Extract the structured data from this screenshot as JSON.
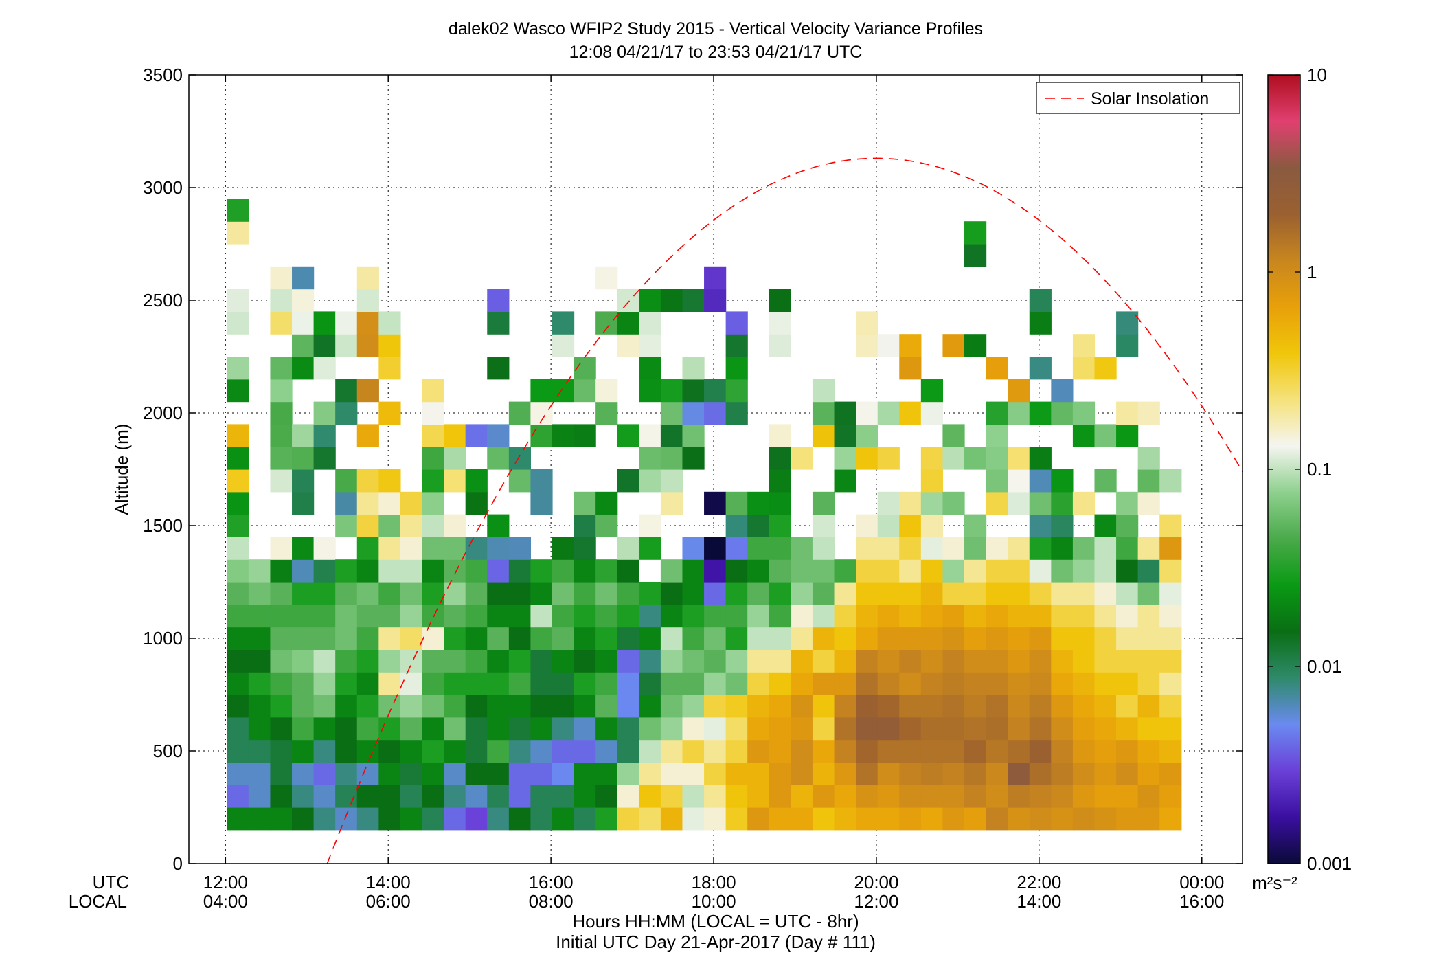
{
  "chart_data": {
    "type": "heatmap",
    "title": "dalek02 Wasco WFIP2 Study 2015 - Vertical Velocity Variance Profiles",
    "subtitle": "12:08 04/21/17 to 23:53 04/21/17  UTC",
    "ylabel": "Altitude (m)",
    "xlabel": "Hours HH:MM  (LOCAL = UTC - 8hr)",
    "xlabel2": "Initial UTC Day 21-Apr-2017 (Day # 111)",
    "x_row_labels": {
      "utc": "UTC",
      "local": "LOCAL"
    },
    "x_ticks_utc": [
      "12:00",
      "14:00",
      "16:00",
      "18:00",
      "20:00",
      "22:00",
      "00:00"
    ],
    "x_ticks_local": [
      "04:00",
      "06:00",
      "08:00",
      "10:00",
      "12:00",
      "14:00",
      "16:00"
    ],
    "x_tick_hours": [
      12,
      14,
      16,
      18,
      20,
      22,
      24
    ],
    "xlim_hours": [
      11.55,
      24.5
    ],
    "y_ticks": [
      "0",
      "500",
      "1000",
      "1500",
      "2000",
      "2500",
      "3000",
      "3500"
    ],
    "ylim": [
      0,
      3500
    ],
    "grid": true,
    "colorbar": {
      "scale": "log",
      "range": [
        0.001,
        10
      ],
      "tick_labels": [
        "0.001",
        "0.01",
        "0.1",
        "1",
        "10"
      ],
      "units": "m²s⁻²",
      "stops": [
        "#0a0a38",
        "#3a0fa0",
        "#6a40d8",
        "#6a8af0",
        "#2e8a6a",
        "#0a6e14",
        "#0a9a14",
        "#4aaa4a",
        "#8ed08e",
        "#f5f5f0",
        "#f5e27a",
        "#f0c60a",
        "#e8a00a",
        "#c8861e",
        "#9a6030",
        "#8a5a40",
        "#e04070",
        "#b00e20"
      ]
    },
    "legend": {
      "label": "Solar Insolation",
      "position": "top-right",
      "color": "#ff0000"
    },
    "time_columns": 44,
    "column_width_hours": 0.2666,
    "first_column_hour": 12.15,
    "gate_height_m": 100,
    "first_gate_m": 200,
    "solar_insolation_curve": {
      "start_hour": 13.25,
      "end_hour": 24.5,
      "peak_hour": 20.0,
      "peak_altitude": 3130
    },
    "heatmap_note": "values are vertical velocity variance in m2s-2 (log scale); cells estimated from colors",
    "profiles": [
      {
        "top": 2900,
        "low": [
          0.02,
          0.004,
          0.006,
          0.01,
          0.01,
          0.015,
          0.02,
          0.015,
          0.02,
          0.04,
          0.05,
          0.07,
          0.1
        ]
      },
      {
        "top": 1300,
        "low": [
          0.02,
          0.006,
          0.006,
          0.01,
          0.02,
          0.02,
          0.03,
          0.015,
          0.02,
          0.04,
          0.06,
          0.08
        ]
      },
      {
        "top": 2650,
        "low": [
          0.02,
          0.015,
          0.012,
          0.012,
          0.015,
          0.03,
          0.04,
          0.06,
          0.05,
          0.04,
          0.05
        ]
      },
      {
        "top": 2600,
        "low": [
          0.015,
          0.008,
          0.006,
          0.02,
          0.04,
          0.05,
          0.05,
          0.07,
          0.05,
          0.04,
          0.03
        ]
      },
      {
        "top": 2450,
        "low": [
          0.008,
          0.006,
          0.004,
          0.008,
          0.02,
          0.06,
          0.08,
          0.1,
          0.05,
          0.04,
          0.03
        ]
      },
      {
        "top": 2400,
        "low": [
          0.006,
          0.01,
          0.008,
          0.015,
          0.015,
          0.02,
          0.03,
          0.04,
          0.06,
          0.06,
          0.05,
          0.03
        ]
      },
      {
        "top": 2600,
        "low": [
          0.008,
          0.015,
          0.006,
          0.02,
          0.04,
          0.03,
          0.02,
          0.03,
          0.04,
          0.05,
          0.06,
          0.02,
          0.03,
          0.3,
          0.2,
          0.3
        ]
      },
      {
        "top": 2350,
        "low": [
          0.015,
          0.015,
          0.02,
          0.015,
          0.03,
          0.06,
          0.2,
          0.08,
          0.2,
          0.05,
          0.04,
          0.1,
          0.2,
          0.06,
          0.15
        ]
      },
      {
        "top": 1800,
        "low": [
          0.02,
          0.01,
          0.012,
          0.02,
          0.05,
          0.08,
          0.12,
          0.1,
          0.25,
          0.08,
          0.06,
          0.1,
          0.15,
          0.2,
          0.3
        ]
      },
      {
        "top": 2200,
        "low": [
          0.01,
          0.015,
          0.02,
          0.03,
          0.02,
          0.06,
          0.04,
          0.05,
          0.15,
          0.04,
          0.03,
          0.02,
          0.06,
          0.1
        ]
      },
      {
        "top": 2200,
        "low": [
          0.004,
          0.008,
          0.006,
          0.02,
          0.06,
          0.04,
          0.03,
          0.05,
          0.03,
          0.05,
          0.08,
          0.05,
          0.06,
          0.15
        ]
      },
      {
        "top": 2300,
        "low": [
          0.003,
          0.006,
          0.015,
          0.012,
          0.012,
          0.015,
          0.03,
          0.04,
          0.02,
          0.04,
          0.05,
          0.04,
          0.008
        ]
      },
      {
        "top": 2550,
        "low": [
          0.008,
          0.01,
          0.015,
          0.04,
          0.02,
          0.02,
          0.03,
          0.02,
          0.05,
          0.02,
          0.015
        ]
      },
      {
        "top": 2100,
        "low": [
          0.015,
          0.004,
          0.004,
          0.008,
          0.012,
          0.02,
          0.04,
          0.03,
          0.015,
          0.02,
          0.015,
          0.012
        ]
      },
      {
        "top": 2100,
        "low": [
          0.01,
          0.01,
          0.004,
          0.006,
          0.02,
          0.015,
          0.012,
          0.012,
          0.04,
          0.1,
          0.02,
          0.03
        ]
      },
      {
        "top": 2400,
        "low": [
          0.02,
          0.01,
          0.005,
          0.004,
          0.008,
          0.015,
          0.012,
          0.02,
          0.05,
          0.04,
          0.06,
          0.04
        ]
      },
      {
        "top": 2300,
        "low": [
          0.01,
          0.02,
          0.02,
          0.004,
          0.006,
          0.02,
          0.03,
          0.015,
          0.02,
          0.03,
          0.04,
          0.02
        ]
      },
      {
        "top": 2600,
        "low": [
          0.03,
          0.015,
          0.02,
          0.006,
          0.02,
          0.05,
          0.04,
          0.02,
          0.03,
          0.04,
          0.06
        ]
      },
      {
        "top": 2500,
        "low": [
          0.3,
          0.15,
          0.08,
          0.01,
          0.01,
          0.005,
          0.005,
          0.004,
          0.012,
          0.03,
          0.04
        ]
      },
      {
        "top": 2500,
        "low": [
          0.25,
          0.4,
          0.2,
          0.1,
          0.06,
          0.02,
          0.012,
          0.008,
          0.02,
          0.008,
          0.03
        ]
      },
      {
        "top": 2500,
        "low": [
          0.5,
          0.3,
          0.15,
          0.2,
          0.08,
          0.06,
          0.05,
          0.08,
          0.1,
          0.02,
          0.015,
          0.06
        ]
      },
      {
        "top": 2500,
        "low": [
          0.12,
          0.1,
          0.15,
          0.3,
          0.15,
          0.08,
          0.05,
          0.06,
          0.04,
          0.03,
          0.02,
          0.02
        ]
      },
      {
        "top": 2550,
        "low": [
          0.15,
          0.2,
          0.3,
          0.2,
          0.12,
          0.3,
          0.08,
          0.05,
          0.06,
          0.04,
          0.004
        ]
      },
      {
        "top": 2400,
        "low": [
          0.35,
          0.4,
          0.5,
          0.3,
          0.25,
          0.35,
          0.06,
          0.08,
          0.03,
          0.04,
          0.03,
          0.015
        ]
      },
      {
        "top": 1700,
        "low": [
          0.8,
          0.5,
          0.5,
          0.8,
          0.6,
          0.5,
          0.3,
          0.2,
          0.1,
          0.08,
          0.05,
          0.02,
          0.04
        ]
      },
      {
        "top": 2450,
        "low": [
          0.6,
          0.8,
          0.8,
          0.7,
          0.7,
          0.6,
          0.4,
          0.2,
          0.1,
          0.04,
          0.03,
          0.05,
          0.04
        ]
      },
      {
        "top": 1950,
        "low": [
          0.6,
          0.5,
          1.0,
          1.0,
          0.8,
          0.9,
          0.6,
          0.5,
          0.2,
          0.15,
          0.08,
          0.06,
          0.06
        ]
      },
      {
        "top": 2100,
        "low": [
          0.4,
          0.8,
          0.5,
          0.6,
          0.3,
          0.4,
          0.8,
          0.3,
          0.5,
          0.1,
          0.05,
          0.06,
          0.1
        ]
      },
      {
        "top": 2000,
        "low": [
          0.5,
          0.6,
          0.8,
          1.2,
          1.5,
          1.2,
          0.8,
          0.5,
          0.4,
          0.3,
          0.2,
          0.04
        ]
      },
      {
        "top": 2350,
        "low": [
          0.6,
          0.9,
          1.5,
          1.8,
          2.5,
          2.0,
          1.5,
          1.2,
          0.6,
          0.5,
          0.4,
          0.3,
          0.2,
          0.15
        ]
      },
      {
        "top": 2250,
        "low": [
          0.6,
          0.8,
          1.0,
          1.5,
          2.5,
          1.8,
          1.2,
          1.0,
          0.8,
          0.6,
          0.4,
          0.3,
          0.2,
          0.1
        ]
      },
      {
        "top": 2300,
        "low": [
          0.7,
          1.0,
          1.2,
          1.5,
          1.8,
          1.4,
          1.0,
          1.2,
          0.8,
          0.5,
          0.4,
          0.2,
          0.3,
          0.4
        ]
      },
      {
        "top": 2200,
        "low": [
          0.6,
          1.0,
          1.3,
          1.5,
          1.6,
          1.4,
          1.2,
          1.0,
          0.8,
          0.6,
          0.5,
          0.4,
          0.12
        ]
      },
      {
        "top": 2300,
        "low": [
          0.8,
          1.0,
          1.2,
          1.5,
          1.6,
          1.5,
          1.3,
          1.2,
          0.9,
          0.7,
          0.3,
          0.08,
          0.15
        ]
      },
      {
        "top": 2750,
        "low": [
          0.7,
          1.2,
          1.4,
          1.8,
          1.5,
          1.3,
          1.2,
          1.0,
          0.7,
          0.5,
          0.3,
          0.2,
          0.06
        ]
      },
      {
        "top": 2250,
        "low": [
          1.2,
          1.0,
          1.1,
          1.4,
          1.6,
          1.5,
          1.2,
          1.0,
          0.8,
          0.6,
          0.4,
          0.3,
          0.15
        ]
      },
      {
        "top": 2100,
        "low": [
          0.9,
          1.3,
          3.0,
          1.6,
          1.2,
          1.1,
          1.0,
          0.8,
          0.7,
          0.5,
          0.4,
          0.3,
          0.2
        ]
      },
      {
        "top": 2650,
        "low": [
          1.0,
          1.2,
          1.6,
          2.0,
          1.5,
          1.3,
          1.1,
          1.0,
          0.8,
          0.5,
          0.3,
          0.12,
          0.03
        ]
      },
      {
        "top": 2500,
        "low": [
          0.9,
          1.1,
          1.3,
          1.2,
          1.0,
          0.8,
          0.6,
          0.5,
          0.4,
          0.3,
          0.2,
          0.06,
          0.02
        ]
      },
      {
        "top": 2300,
        "low": [
          1.0,
          0.8,
          1.0,
          0.8,
          0.7,
          0.6,
          0.5,
          0.4,
          0.4,
          0.3,
          0.2,
          0.08,
          0.06
        ]
      },
      {
        "top": 2200,
        "low": [
          0.9,
          0.7,
          0.8,
          0.7,
          0.6,
          0.5,
          0.4,
          0.3,
          0.3,
          0.2,
          0.15,
          0.1,
          0.1
        ]
      },
      {
        "top": 2350,
        "low": [
          0.8,
          0.7,
          1.0,
          0.8,
          0.5,
          0.3,
          0.4,
          0.3,
          0.2,
          0.15,
          0.1,
          0.015,
          0.04
        ]
      },
      {
        "top": 2050,
        "low": [
          0.8,
          0.9,
          0.7,
          0.6,
          0.4,
          0.5,
          0.3,
          0.3,
          0.2,
          0.2,
          0.06,
          0.01,
          0.2
        ]
      },
      {
        "top": 1700,
        "low": [
          0.6,
          0.7,
          0.8,
          0.5,
          0.4,
          0.3,
          0.2,
          0.3,
          0.2,
          0.15,
          0.12,
          0.25
        ]
      }
    ]
  }
}
